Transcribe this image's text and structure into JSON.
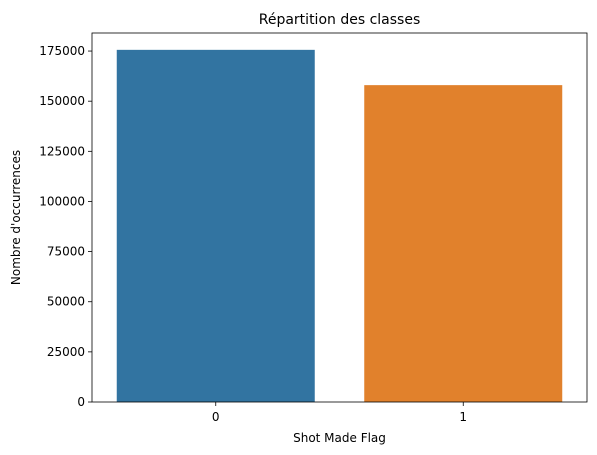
{
  "chart_data": {
    "type": "bar",
    "title": "Répartition des classes",
    "xlabel": "Shot Made Flag",
    "ylabel": "Nombre d'occurrences",
    "categories": [
      "0",
      "1"
    ],
    "values": [
      175600,
      158000
    ],
    "colors": [
      "#3274a1",
      "#e1812c"
    ],
    "ylim": [
      0,
      184000
    ],
    "yticks": [
      0,
      25000,
      50000,
      75000,
      100000,
      125000,
      150000,
      175000
    ],
    "ytick_labels": [
      "0",
      "25000",
      "50000",
      "75000",
      "100000",
      "125000",
      "150000",
      "175000"
    ],
    "grid": false,
    "legend": "none"
  }
}
